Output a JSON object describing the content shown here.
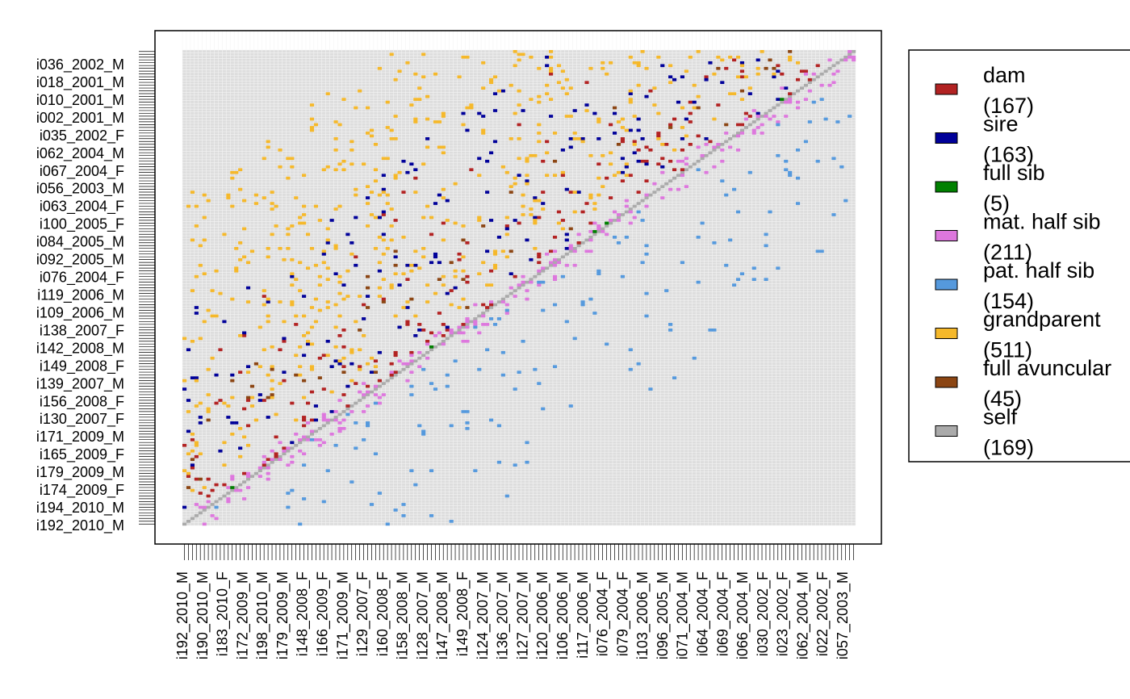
{
  "chart_data": {
    "type": "heatmap",
    "title": "",
    "xlabel": "",
    "ylabel": "",
    "grid": true,
    "legend_position": "right",
    "n_individuals": 169,
    "y_tick_labels": [
      "i036_2002_M",
      "i018_2001_M",
      "i010_2001_M",
      "i002_2001_M",
      "i035_2002_F",
      "i062_2004_M",
      "i067_2004_F",
      "i056_2003_M",
      "i063_2004_F",
      "i100_2005_F",
      "i084_2005_M",
      "i092_2005_M",
      "i076_2004_F",
      "i119_2006_M",
      "i109_2006_M",
      "i138_2007_F",
      "i142_2008_M",
      "i149_2008_F",
      "i139_2007_M",
      "i156_2008_F",
      "i130_2007_F",
      "i171_2009_M",
      "i165_2009_F",
      "i179_2009_M",
      "i174_2009_F",
      "i194_2010_M",
      "i192_2010_M"
    ],
    "x_tick_labels": [
      "i192_2010_M",
      "i190_2010_M",
      "i183_2010_F",
      "i172_2009_M",
      "i198_2010_M",
      "i179_2009_M",
      "i148_2008_F",
      "i166_2009_F",
      "i171_2009_M",
      "i129_2007_F",
      "i160_2008_F",
      "i158_2008_M",
      "i128_2007_M",
      "i147_2008_M",
      "i149_2008_F",
      "i124_2007_M",
      "i136_2007_M",
      "i127_2007_M",
      "i120_2006_M",
      "i106_2006_M",
      "i117_2006_M",
      "i076_2004_F",
      "i079_2004_F",
      "i103_2006_M",
      "i096_2005_M",
      "i071_2004_M",
      "i064_2004_F",
      "i069_2004_F",
      "i066_2004_M",
      "i030_2002_F",
      "i023_2002_F",
      "i062_2004_M",
      "i022_2002_F",
      "i057_2003_M"
    ],
    "legend": [
      {
        "label": "dam",
        "count": "(167)",
        "color": "#b22222"
      },
      {
        "label": "sire",
        "count": "(163)",
        "color": "#000099"
      },
      {
        "label": "full sib",
        "count": "(5)",
        "color": "#008000"
      },
      {
        "label": "mat. half sib",
        "count": "(211)",
        "color": "#dd77dd"
      },
      {
        "label": "pat. half sib",
        "count": "(154)",
        "color": "#5599dd"
      },
      {
        "label": "grandparent",
        "count": "(511)",
        "color": "#f5b82a"
      },
      {
        "label": "full avuncular",
        "count": "(45)",
        "color": "#8b4513"
      },
      {
        "label": "self",
        "count": "(169)",
        "color": "#aaaaaa"
      }
    ],
    "background_color": "#dddddd"
  }
}
